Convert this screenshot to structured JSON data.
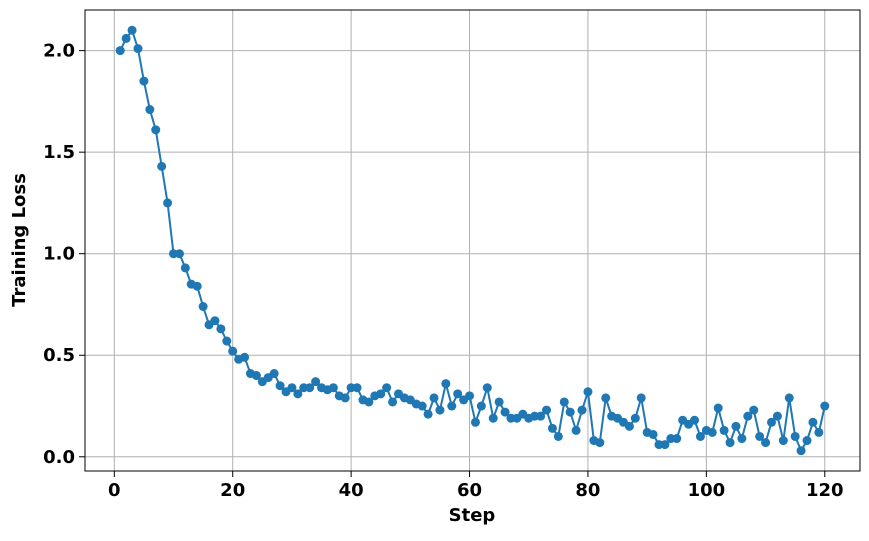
{
  "chart_data": {
    "type": "line",
    "xlabel": "Step",
    "ylabel": "Training Loss",
    "x": [
      1,
      2,
      3,
      4,
      5,
      6,
      7,
      8,
      9,
      10,
      11,
      12,
      13,
      14,
      15,
      16,
      17,
      18,
      19,
      20,
      21,
      22,
      23,
      24,
      25,
      26,
      27,
      28,
      29,
      30,
      31,
      32,
      33,
      34,
      35,
      36,
      37,
      38,
      39,
      40,
      41,
      42,
      43,
      44,
      45,
      46,
      47,
      48,
      49,
      50,
      51,
      52,
      53,
      54,
      55,
      56,
      57,
      58,
      59,
      60,
      61,
      62,
      63,
      64,
      65,
      66,
      67,
      68,
      69,
      70,
      71,
      72,
      73,
      74,
      75,
      76,
      77,
      78,
      79,
      80,
      81,
      82,
      83,
      84,
      85,
      86,
      87,
      88,
      89,
      90,
      91,
      92,
      93,
      94,
      95,
      96,
      97,
      98,
      99,
      100,
      101,
      102,
      103,
      104,
      105,
      106,
      107,
      108,
      109,
      110,
      111,
      112,
      113,
      114,
      115,
      116,
      117,
      118,
      119,
      120
    ],
    "series": [
      {
        "color": "#1f77b4",
        "values": [
          2.0,
          2.06,
          2.1,
          2.01,
          1.85,
          1.71,
          1.61,
          1.43,
          1.25,
          1.0,
          1.0,
          0.93,
          0.85,
          0.84,
          0.74,
          0.65,
          0.67,
          0.63,
          0.57,
          0.52,
          0.48,
          0.49,
          0.41,
          0.4,
          0.37,
          0.39,
          0.41,
          0.35,
          0.32,
          0.34,
          0.31,
          0.34,
          0.34,
          0.37,
          0.34,
          0.33,
          0.34,
          0.3,
          0.29,
          0.34,
          0.34,
          0.28,
          0.27,
          0.3,
          0.31,
          0.34,
          0.27,
          0.31,
          0.29,
          0.28,
          0.26,
          0.25,
          0.21,
          0.29,
          0.23,
          0.36,
          0.25,
          0.31,
          0.28,
          0.3,
          0.17,
          0.25,
          0.34,
          0.19,
          0.27,
          0.22,
          0.19,
          0.19,
          0.21,
          0.19,
          0.2,
          0.2,
          0.23,
          0.14,
          0.1,
          0.27,
          0.22,
          0.13,
          0.23,
          0.32,
          0.08,
          0.07,
          0.29,
          0.2,
          0.19,
          0.17,
          0.15,
          0.19,
          0.29,
          0.12,
          0.11,
          0.06,
          0.06,
          0.09,
          0.09,
          0.18,
          0.16,
          0.18,
          0.1,
          0.13,
          0.12,
          0.24,
          0.13,
          0.07,
          0.15,
          0.09,
          0.2,
          0.23,
          0.1,
          0.07,
          0.17,
          0.2,
          0.08,
          0.29,
          0.1,
          0.03,
          0.08,
          0.17,
          0.12,
          0.25
        ]
      }
    ],
    "xlim": [
      -4.95,
      125.95
    ],
    "ylim": [
      -0.07,
      2.2
    ],
    "xticks": [
      0,
      20,
      40,
      60,
      80,
      100,
      120
    ],
    "yticks": [
      {
        "value": 0,
        "label": "0.0"
      },
      0.5,
      {
        "value": 1,
        "label": "1.0"
      },
      1.5,
      {
        "value": 2,
        "label": "2.0"
      }
    ],
    "grid": true
  }
}
